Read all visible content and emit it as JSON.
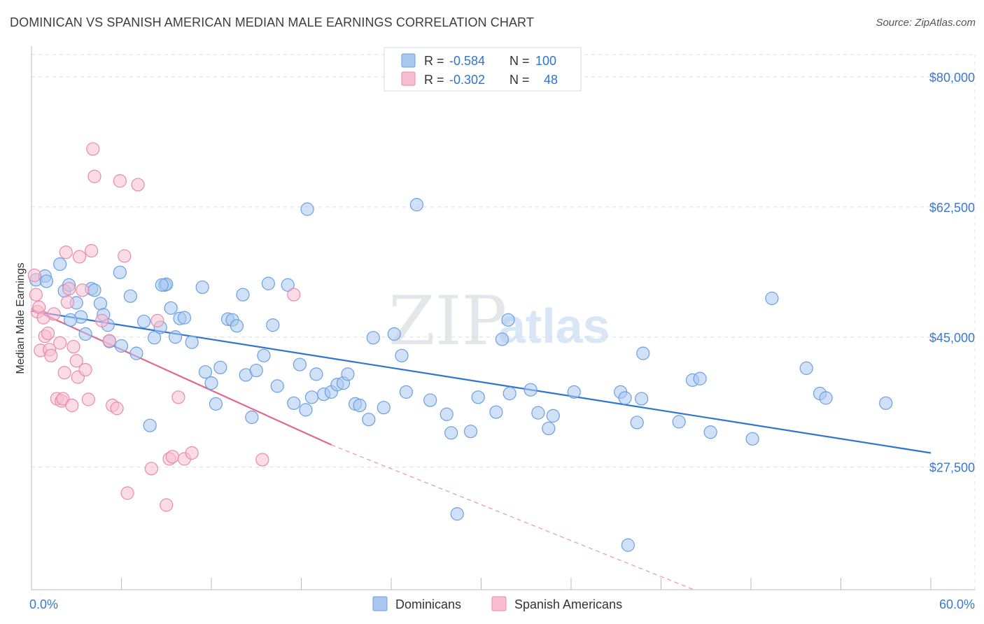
{
  "title": "DOMINICAN VS SPANISH AMERICAN MEDIAN MALE EARNINGS CORRELATION CHART",
  "source": "Source: ZipAtlas.com",
  "watermark": {
    "zip": "ZIP",
    "atlas": "atlas"
  },
  "legend_top": [
    {
      "r_label": "R =",
      "r_value": "-0.584",
      "n_label": "N =",
      "n_value": "100",
      "color": "#a9c8f0",
      "stroke": "#6a9fe0"
    },
    {
      "r_label": "R =",
      "r_value": "-0.302",
      "n_label": "N =",
      "n_value": "48",
      "color": "#f7bdd0",
      "stroke": "#e88aab"
    }
  ],
  "legend_bottom": [
    {
      "label": "Dominicans",
      "color": "#a9c8f0",
      "stroke": "#6a9fe0"
    },
    {
      "label": "Spanish Americans",
      "color": "#f7bdd0",
      "stroke": "#e88aab"
    }
  ],
  "chart_data": {
    "type": "scatter",
    "title": "DOMINICAN VS SPANISH AMERICAN MEDIAN MALE EARNINGS CORRELATION CHART",
    "xlabel": "",
    "ylabel": "Median Male Earnings",
    "xlim": [
      0,
      60
    ],
    "ylim": [
      11000,
      83000
    ],
    "x_tick_labels": [
      "0.0%",
      "60.0%"
    ],
    "y_ticks": [
      27500,
      45000,
      62500,
      80000
    ],
    "y_tick_labels": [
      "$27,500",
      "$45,000",
      "$62,500",
      "$80,000"
    ],
    "grid": true,
    "legend_position": "top-center",
    "series": [
      {
        "name": "Dominicans",
        "color": "#a9c8f0",
        "stroke": "#6a9fe0",
        "line_color": "#2f74d0",
        "trend": {
          "x": [
            0.0,
            60.0
          ],
          "y": [
            48500,
            29400
          ]
        },
        "points": [
          [
            0.3,
            52700
          ],
          [
            0.9,
            53200
          ],
          [
            1.0,
            52500
          ],
          [
            1.9,
            54800
          ],
          [
            2.2,
            51200
          ],
          [
            2.5,
            52000
          ],
          [
            3.0,
            49600
          ],
          [
            3.3,
            47700
          ],
          [
            2.6,
            47300
          ],
          [
            3.6,
            45400
          ],
          [
            4.0,
            51500
          ],
          [
            4.2,
            51300
          ],
          [
            4.6,
            49500
          ],
          [
            4.8,
            48000
          ],
          [
            5.1,
            46600
          ],
          [
            5.2,
            44400
          ],
          [
            5.9,
            53700
          ],
          [
            6.0,
            43800
          ],
          [
            6.6,
            50500
          ],
          [
            7.0,
            42800
          ],
          [
            7.5,
            47100
          ],
          [
            7.9,
            33100
          ],
          [
            8.2,
            44900
          ],
          [
            8.9,
            52000
          ],
          [
            8.6,
            46300
          ],
          [
            9.0,
            52100
          ],
          [
            9.3,
            48900
          ],
          [
            9.6,
            45000
          ],
          [
            9.9,
            47500
          ],
          [
            10.2,
            47600
          ],
          [
            10.7,
            44300
          ],
          [
            11.4,
            51700
          ],
          [
            11.6,
            40300
          ],
          [
            12.0,
            38800
          ],
          [
            12.3,
            36000
          ],
          [
            12.6,
            40900
          ],
          [
            13.1,
            47400
          ],
          [
            13.4,
            47300
          ],
          [
            13.7,
            46500
          ],
          [
            14.1,
            50700
          ],
          [
            14.3,
            39900
          ],
          [
            14.7,
            34200
          ],
          [
            15.0,
            40500
          ],
          [
            15.5,
            42500
          ],
          [
            15.8,
            52200
          ],
          [
            16.1,
            46600
          ],
          [
            16.4,
            38400
          ],
          [
            17.1,
            52000
          ],
          [
            17.5,
            36100
          ],
          [
            17.9,
            41300
          ],
          [
            18.3,
            35200
          ],
          [
            18.7,
            36900
          ],
          [
            19.0,
            40000
          ],
          [
            19.5,
            37300
          ],
          [
            20.0,
            37600
          ],
          [
            20.4,
            38600
          ],
          [
            20.8,
            38800
          ],
          [
            21.1,
            40000
          ],
          [
            21.6,
            36000
          ],
          [
            21.9,
            35800
          ],
          [
            22.5,
            33900
          ],
          [
            22.8,
            44900
          ],
          [
            23.5,
            35500
          ],
          [
            24.2,
            45400
          ],
          [
            24.7,
            42500
          ],
          [
            25.0,
            37600
          ],
          [
            25.7,
            62800
          ],
          [
            26.6,
            36500
          ],
          [
            27.7,
            34600
          ],
          [
            28.0,
            32100
          ],
          [
            28.4,
            21200
          ],
          [
            29.3,
            32300
          ],
          [
            29.8,
            36900
          ],
          [
            31.0,
            34900
          ],
          [
            31.4,
            44700
          ],
          [
            31.8,
            47300
          ],
          [
            31.9,
            37400
          ],
          [
            33.3,
            37900
          ],
          [
            33.8,
            34800
          ],
          [
            34.5,
            32700
          ],
          [
            34.8,
            34400
          ],
          [
            36.2,
            37600
          ],
          [
            39.3,
            37600
          ],
          [
            39.6,
            36800
          ],
          [
            40.4,
            33500
          ],
          [
            40.7,
            36700
          ],
          [
            40.8,
            42800
          ],
          [
            43.2,
            33600
          ],
          [
            44.1,
            39200
          ],
          [
            44.6,
            39400
          ],
          [
            45.3,
            32200
          ],
          [
            48.1,
            31300
          ],
          [
            49.4,
            50200
          ],
          [
            51.7,
            40800
          ],
          [
            52.6,
            37400
          ],
          [
            53.0,
            36800
          ],
          [
            57.0,
            36100
          ],
          [
            18.4,
            62200
          ],
          [
            39.8,
            17000
          ],
          [
            8.7,
            52000
          ]
        ]
      },
      {
        "name": "Spanish Americans",
        "color": "#f7bdd0",
        "stroke": "#e88aab",
        "line_color": "#e06890",
        "trend": {
          "x": [
            0.0,
            20.0
          ],
          "y": [
            48800,
            30500
          ]
        },
        "trend_extension": {
          "x": [
            20.0,
            44.2
          ],
          "y": [
            30500,
            11000
          ]
        },
        "points": [
          [
            0.2,
            53300
          ],
          [
            0.3,
            50700
          ],
          [
            0.4,
            48400
          ],
          [
            0.5,
            49000
          ],
          [
            0.6,
            43200
          ],
          [
            0.8,
            47600
          ],
          [
            0.9,
            45100
          ],
          [
            1.1,
            45500
          ],
          [
            1.2,
            43300
          ],
          [
            1.3,
            42500
          ],
          [
            1.5,
            48100
          ],
          [
            1.7,
            36700
          ],
          [
            1.9,
            44200
          ],
          [
            2.0,
            36400
          ],
          [
            2.1,
            36700
          ],
          [
            2.2,
            40200
          ],
          [
            2.3,
            56400
          ],
          [
            2.4,
            49700
          ],
          [
            2.5,
            51500
          ],
          [
            2.7,
            35800
          ],
          [
            2.8,
            43700
          ],
          [
            3.0,
            41800
          ],
          [
            3.1,
            39600
          ],
          [
            3.2,
            55800
          ],
          [
            3.4,
            51300
          ],
          [
            3.6,
            40600
          ],
          [
            3.8,
            36600
          ],
          [
            4.0,
            56600
          ],
          [
            4.1,
            70300
          ],
          [
            4.2,
            66600
          ],
          [
            4.7,
            47200
          ],
          [
            5.2,
            44500
          ],
          [
            5.4,
            35800
          ],
          [
            5.7,
            35400
          ],
          [
            5.9,
            66000
          ],
          [
            6.2,
            55900
          ],
          [
            6.4,
            24000
          ],
          [
            7.1,
            65500
          ],
          [
            8.0,
            27300
          ],
          [
            8.4,
            47200
          ],
          [
            9.0,
            22400
          ],
          [
            9.2,
            28600
          ],
          [
            9.4,
            28900
          ],
          [
            9.8,
            36900
          ],
          [
            10.2,
            28600
          ],
          [
            10.7,
            29400
          ],
          [
            15.4,
            28500
          ],
          [
            17.5,
            50700
          ]
        ]
      }
    ]
  }
}
